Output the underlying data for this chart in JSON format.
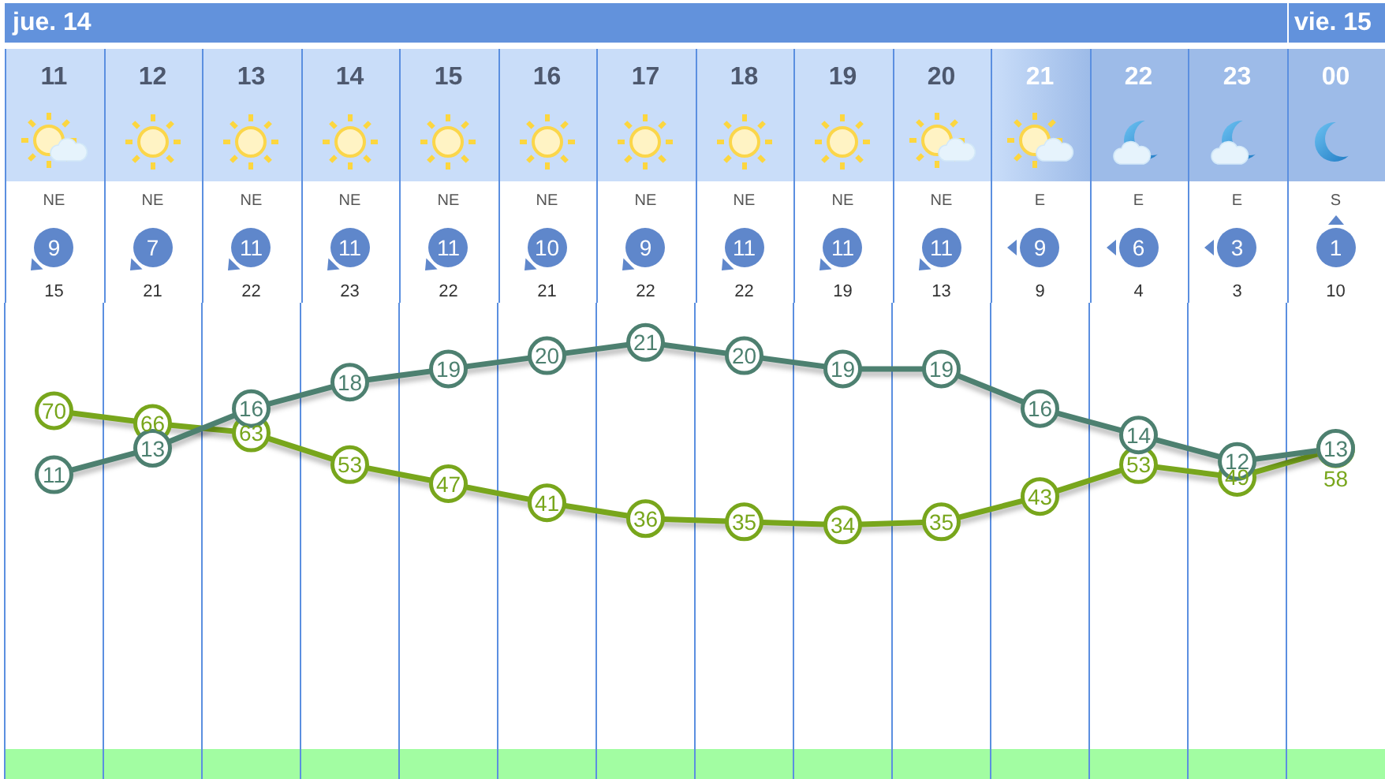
{
  "chart_data": {
    "type": "line",
    "categories": [
      "11",
      "12",
      "13",
      "14",
      "15",
      "16",
      "17",
      "18",
      "19",
      "20",
      "21",
      "22",
      "23",
      "00"
    ],
    "series": [
      {
        "color": "#78a61c",
        "axis": "y2",
        "values": [
          70,
          66,
          63,
          53,
          47,
          41,
          36,
          35,
          34,
          35,
          43,
          53,
          49,
          58
        ]
      },
      {
        "color": "#4d8070",
        "values": [
          11,
          13,
          16,
          18,
          19,
          20,
          21,
          20,
          19,
          19,
          16,
          14,
          12,
          13
        ]
      }
    ],
    "ylim": [
      -12,
      24
    ],
    "y2lim": [
      -46,
      104
    ],
    "data_labels": true,
    "marker": "circle",
    "grid": "x",
    "tick_labels": "x",
    "annotations": [
      "jue. 14",
      "vie. 15",
      "NE",
      "9",
      "15",
      "NE",
      "7",
      "21",
      "NE",
      "11",
      "22",
      "NE",
      "11",
      "23",
      "NE",
      "11",
      "22",
      "NE",
      "10",
      "21",
      "NE",
      "9",
      "22",
      "NE",
      "11",
      "22",
      "NE",
      "11",
      "19",
      "NE",
      "11",
      "13",
      "E",
      "9",
      "9",
      "E",
      "6",
      "4",
      "E",
      "3",
      "3",
      "S",
      "1",
      "10"
    ]
  }
}
